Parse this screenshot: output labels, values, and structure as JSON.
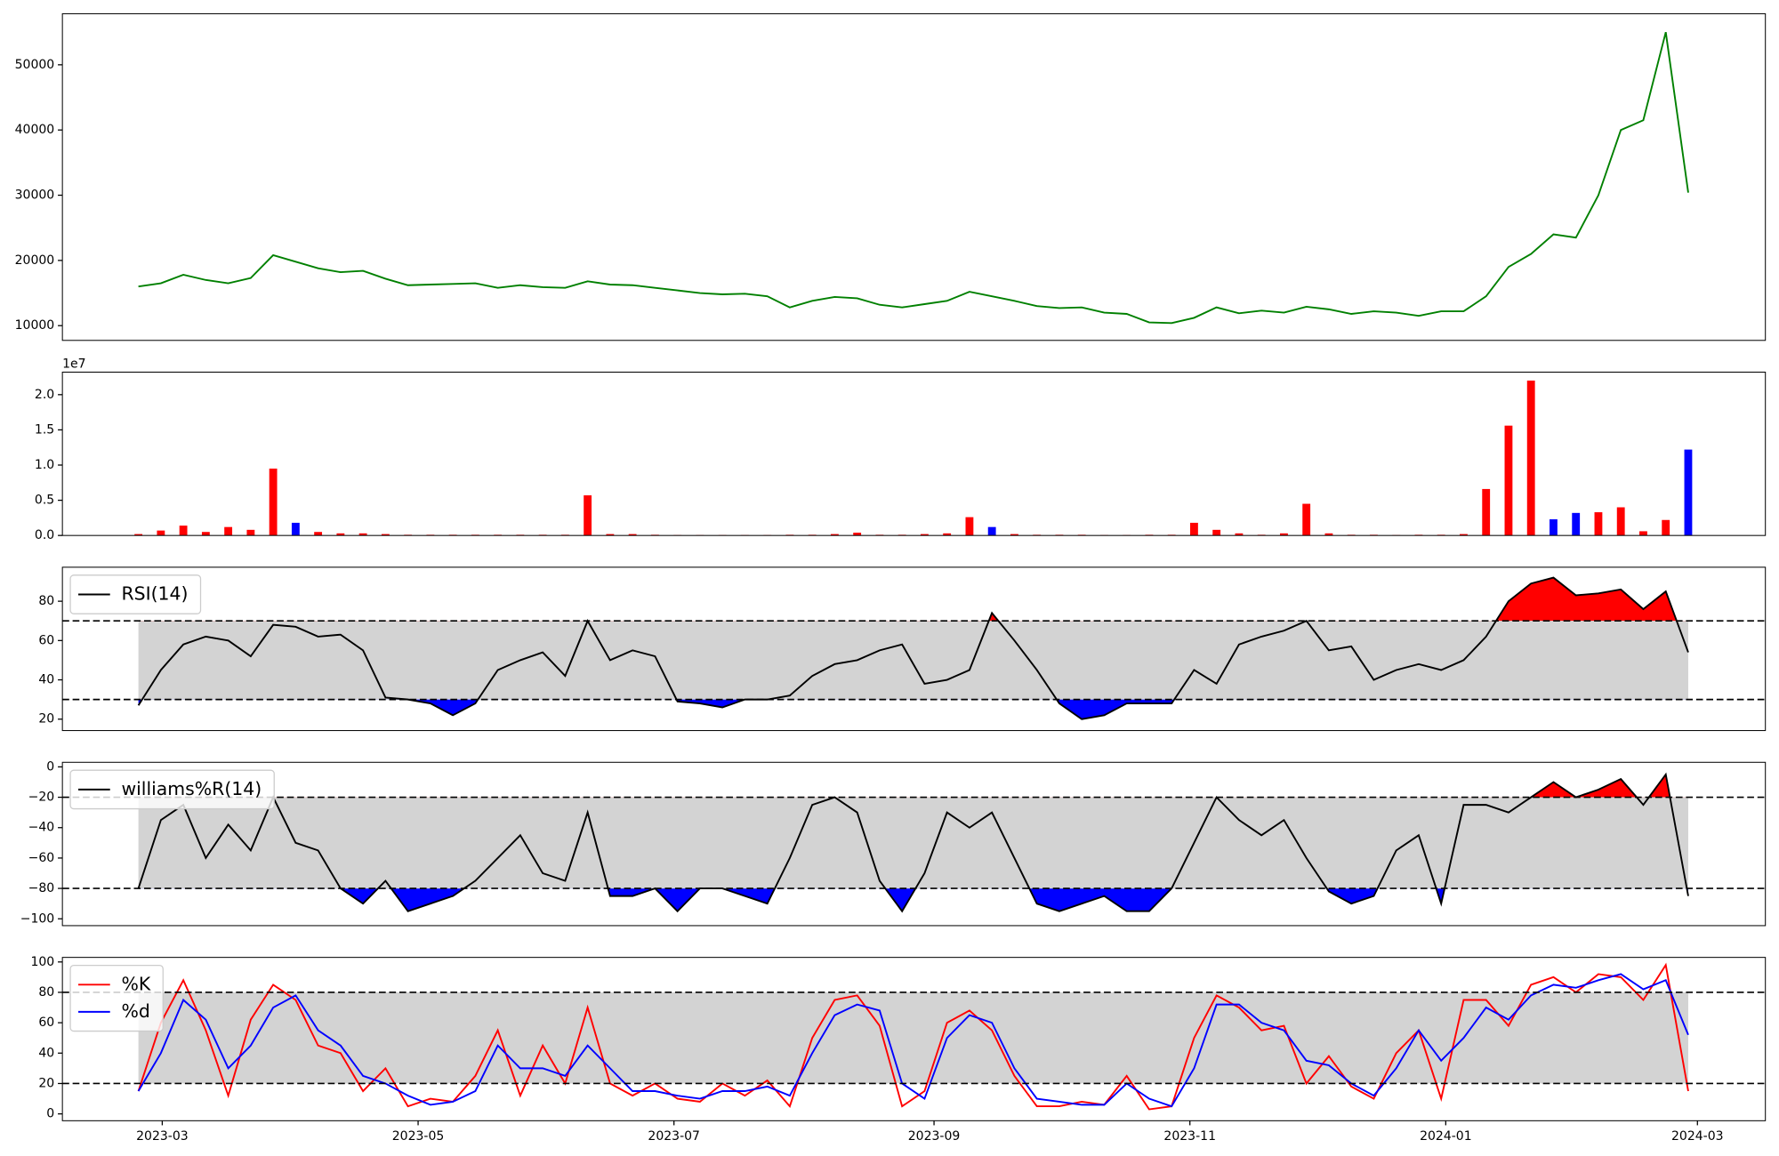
{
  "chart_data": [
    {
      "type": "line",
      "color": "green",
      "values": [
        16000,
        16500,
        17800,
        17000,
        16500,
        17300,
        20800,
        19800,
        18800,
        18200,
        18400,
        17200,
        16200,
        16300,
        16400,
        16500,
        15800,
        16200,
        15900,
        15800,
        16800,
        16300,
        16200,
        15800,
        15400,
        15000,
        14800,
        14900,
        14500,
        12800,
        13800,
        14400,
        14200,
        13200,
        12800,
        13300,
        13800,
        15200,
        14500,
        13800,
        13000,
        12700,
        12800,
        12000,
        11800,
        10500,
        10400,
        11200,
        12800,
        11900,
        12300,
        12000,
        12900,
        12500,
        11800,
        12200,
        12000,
        11500,
        12200,
        12200,
        14500,
        19000,
        21000,
        24000,
        23500,
        30000,
        40000,
        41500,
        55000,
        30400
      ],
      "ylim": [
        7740,
        57830
      ],
      "yticks": [
        10000,
        20000,
        30000,
        40000,
        50000
      ]
    },
    {
      "type": "bar",
      "y_offset_label": "1e7",
      "values": [
        200000,
        700000,
        1400000,
        500000,
        1200000,
        800000,
        9500000,
        1800000,
        500000,
        300000,
        300000,
        200000,
        100000,
        100000,
        100000,
        100000,
        100000,
        100000,
        100000,
        100000,
        5700000,
        200000,
        200000,
        100000,
        50000,
        50000,
        50000,
        50000,
        50000,
        100000,
        100000,
        200000,
        400000,
        100000,
        100000,
        200000,
        300000,
        2600000,
        1200000,
        200000,
        100000,
        100000,
        100000,
        50000,
        50000,
        100000,
        100000,
        1800000,
        800000,
        300000,
        100000,
        300000,
        4500000,
        300000,
        100000,
        100000,
        50000,
        100000,
        100000,
        200000,
        6600000,
        15600000,
        22000000,
        2300000,
        3200000,
        3300000,
        4000000,
        600000,
        2200000,
        12200000
      ],
      "colors": [
        "red",
        "red",
        "red",
        "red",
        "red",
        "red",
        "red",
        "blue",
        "red",
        "red",
        "red",
        "red",
        "red",
        "red",
        "red",
        "red",
        "red",
        "red",
        "red",
        "red",
        "red",
        "red",
        "red",
        "red",
        "red",
        "red",
        "red",
        "red",
        "red",
        "red",
        "red",
        "red",
        "red",
        "red",
        "red",
        "red",
        "red",
        "red",
        "blue",
        "red",
        "red",
        "red",
        "red",
        "red",
        "red",
        "red",
        "red",
        "red",
        "red",
        "red",
        "red",
        "red",
        "red",
        "red",
        "red",
        "red",
        "red",
        "red",
        "red",
        "red",
        "red",
        "red",
        "red",
        "blue",
        "blue",
        "red",
        "red",
        "red",
        "red",
        "blue"
      ],
      "ylim": [
        0,
        23200000
      ],
      "yticks": [
        {
          "value": 0,
          "label": "0.0"
        },
        {
          "value": 5000000,
          "label": "0.5"
        },
        {
          "value": 10000000,
          "label": "1.0"
        },
        {
          "value": 15000000,
          "label": "1.5"
        },
        {
          "value": 20000000,
          "label": "2.0"
        }
      ]
    },
    {
      "type": "line",
      "hlines": [
        70,
        30
      ],
      "band_color": "lightgray",
      "fill_above_color": "red",
      "fill_below_color": "blue",
      "series": [
        {
          "name": "RSI(14)",
          "color": "black",
          "values": [
            27,
            45,
            58,
            62,
            60,
            52,
            68,
            67,
            62,
            63,
            55,
            31,
            30,
            28,
            22,
            28,
            45,
            50,
            54,
            42,
            70,
            50,
            55,
            52,
            29,
            28,
            26,
            30,
            30,
            32,
            42,
            48,
            50,
            55,
            58,
            38,
            40,
            45,
            74,
            60,
            45,
            28,
            20,
            22,
            28,
            28,
            28,
            45,
            38,
            58,
            62,
            65,
            70,
            55,
            57,
            40,
            45,
            48,
            45,
            50,
            62,
            80,
            89,
            92,
            83,
            84,
            86,
            76,
            85,
            54
          ]
        }
      ],
      "ylim": [
        14.2,
        97.3
      ],
      "yticks": [
        20,
        40,
        60,
        80
      ]
    },
    {
      "type": "line",
      "hlines": [
        -20,
        -80
      ],
      "band_color": "lightgray",
      "fill_above_color": "red",
      "fill_below_color": "blue",
      "series": [
        {
          "name": "williams%R(14)",
          "color": "black",
          "values": [
            -80,
            -35,
            -25,
            -60,
            -38,
            -55,
            -20,
            -50,
            -55,
            -80,
            -90,
            -75,
            -95,
            -90,
            -85,
            -75,
            -60,
            -45,
            -70,
            -75,
            -30,
            -85,
            -85,
            -80,
            -95,
            -80,
            -80,
            -85,
            -90,
            -60,
            -25,
            -20,
            -30,
            -75,
            -95,
            -70,
            -30,
            -40,
            -30,
            -60,
            -90,
            -95,
            -90,
            -85,
            -95,
            -95,
            -80,
            -50,
            -20,
            -35,
            -45,
            -35,
            -60,
            -82,
            -90,
            -85,
            -55,
            -45,
            -90,
            -25,
            -25,
            -30,
            -20,
            -10,
            -20,
            -15,
            -8,
            -25,
            -5,
            -85
          ]
        }
      ],
      "ylim": [
        -104.5,
        3
      ],
      "yticks": [
        {
          "value": -100,
          "label": "−100"
        },
        {
          "value": -80,
          "label": "−80"
        },
        {
          "value": -60,
          "label": "−60"
        },
        {
          "value": -40,
          "label": "−40"
        },
        {
          "value": -20,
          "label": "−20"
        },
        0
      ]
    },
    {
      "type": "line",
      "hlines": [
        80,
        20
      ],
      "band_color": "lightgray",
      "series": [
        {
          "name": "%K",
          "color": "red",
          "values": [
            15,
            60,
            88,
            55,
            12,
            62,
            85,
            75,
            45,
            40,
            15,
            30,
            5,
            10,
            8,
            25,
            55,
            12,
            45,
            20,
            70,
            20,
            12,
            20,
            10,
            8,
            20,
            12,
            22,
            5,
            50,
            75,
            78,
            58,
            5,
            15,
            60,
            68,
            55,
            25,
            5,
            5,
            8,
            6,
            25,
            3,
            5,
            50,
            78,
            70,
            55,
            58,
            20,
            38,
            18,
            10,
            40,
            55,
            10,
            75,
            75,
            58,
            85,
            90,
            80,
            92,
            90,
            75,
            98,
            15
          ]
        },
        {
          "name": "%d",
          "color": "blue",
          "values": [
            15,
            40,
            75,
            62,
            30,
            45,
            70,
            78,
            55,
            45,
            25,
            20,
            12,
            6,
            8,
            15,
            45,
            30,
            30,
            25,
            45,
            30,
            15,
            15,
            12,
            10,
            15,
            15,
            18,
            12,
            40,
            65,
            72,
            68,
            20,
            10,
            50,
            65,
            60,
            30,
            10,
            8,
            6,
            6,
            20,
            10,
            5,
            30,
            72,
            72,
            60,
            55,
            35,
            32,
            20,
            12,
            30,
            55,
            35,
            50,
            70,
            62,
            78,
            85,
            83,
            88,
            92,
            82,
            88,
            52
          ]
        }
      ],
      "ylim": [
        -4.5,
        103
      ],
      "yticks": [
        0,
        20,
        40,
        60,
        80,
        100
      ],
      "xticks": [
        "2023-03",
        "2023-05",
        "2023-07",
        "2023-09",
        "2023-11",
        "2024-01",
        "2024-03"
      ]
    }
  ]
}
